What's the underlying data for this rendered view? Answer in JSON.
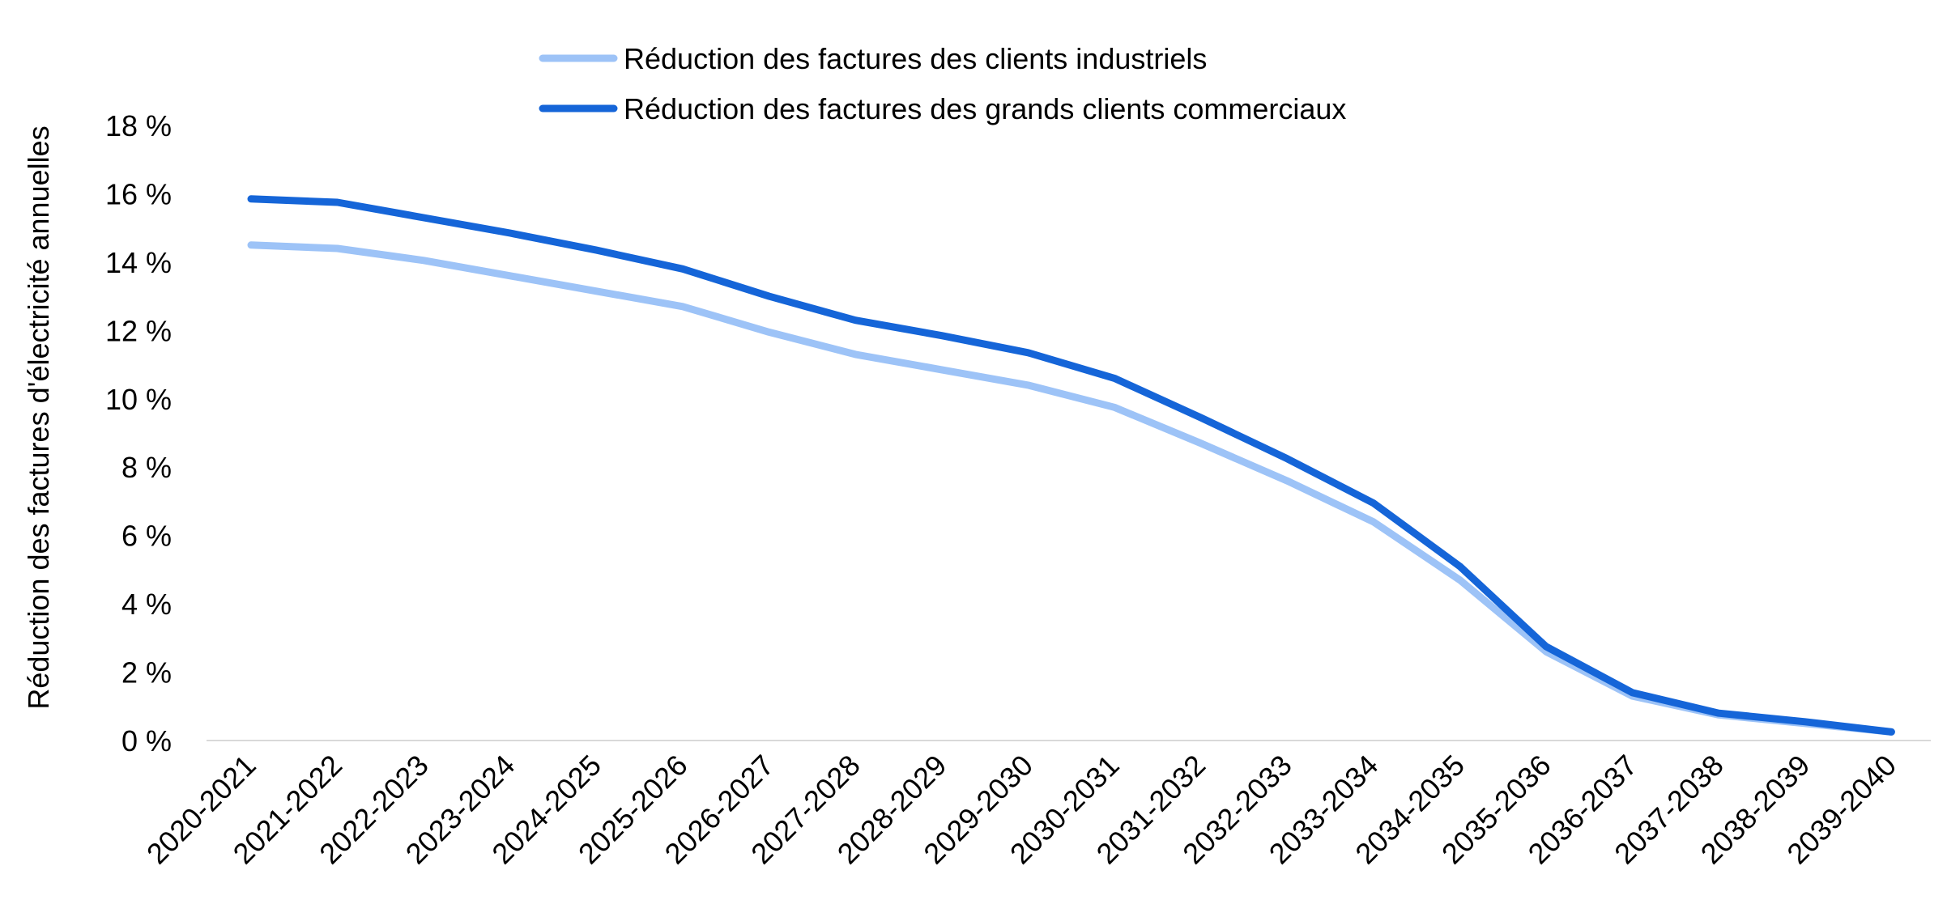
{
  "chart_data": {
    "type": "line",
    "title": "",
    "xlabel": "",
    "ylabel": "Réduction des factures d'électricité annuelles",
    "categories": [
      "2020-2021",
      "2021-2022",
      "2022-2023",
      "2023-2024",
      "2024-2025",
      "2025-2026",
      "2026-2027",
      "2027-2028",
      "2028-2029",
      "2029-2030",
      "2030-2031",
      "2031-2032",
      "2032-2033",
      "2033-2034",
      "2034-2035",
      "2035-2036",
      "2036-2037",
      "2037-2038",
      "2038-2039",
      "2039-2040"
    ],
    "y_ticks": [
      "0 %",
      "2 %",
      "4 %",
      "6 %",
      "8 %",
      "10 %",
      "12 %",
      "14 %",
      "16 %",
      "18 %"
    ],
    "ylim": [
      0,
      18
    ],
    "y_unit": "%",
    "grid": false,
    "legend_position": "top",
    "series": [
      {
        "name": "Réduction des factures des clients industriels",
        "color": "#9dc3f7",
        "values": [
          14.5,
          14.4,
          14.05,
          13.6,
          13.15,
          12.7,
          11.95,
          11.3,
          10.85,
          10.4,
          9.75,
          8.7,
          7.6,
          6.4,
          4.7,
          2.6,
          1.3,
          0.75,
          0.5,
          0.25
        ]
      },
      {
        "name": "Réduction des factures des grands clients commerciaux",
        "color": "#1565d8",
        "values": [
          15.85,
          15.75,
          15.3,
          14.85,
          14.35,
          13.8,
          13.0,
          12.3,
          11.85,
          11.35,
          10.6,
          9.45,
          8.25,
          6.95,
          5.1,
          2.75,
          1.4,
          0.8,
          0.55,
          0.25
        ]
      }
    ]
  }
}
